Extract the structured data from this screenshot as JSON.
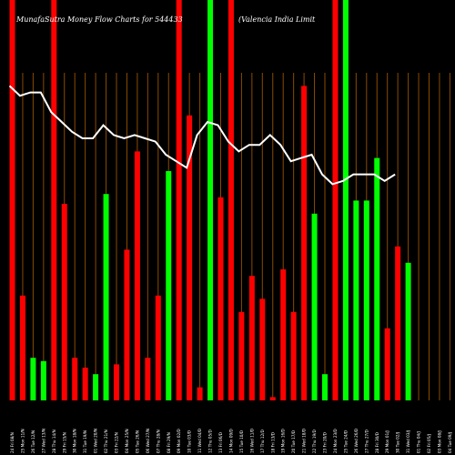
{
  "chart_data": {
    "type": "bar",
    "title_left": "MunafaSutra  Money Flow  Charts for 544433",
    "title_right": "(Valencia  India  Limit",
    "colors": {
      "up": "#00ff00",
      "down": "#ff0000",
      "line": "#ffffff",
      "grid": "#8b4a00",
      "background": "#000000"
    },
    "ylim": [
      0,
      100
    ],
    "categories": [
      "24 Fri 08/N",
      "25 Mon 11/N",
      "26 Tue 12/N",
      "27 Wed 13/N",
      "28 Thu 14/N",
      "29 Fri 15/N",
      "30 Mon 18/N",
      "31 Tue 19/N",
      "01 Wed 20/N",
      "02 Thu 21/N",
      "03 Fri 22/N",
      "04 Mon 25/N",
      "05 Tue 26/N",
      "06 Wed 27/N",
      "07 Thu 28/N",
      "08 Fri 29/N",
      "09 Mon 02/D",
      "10 Tue 03/D",
      "11 Wed 04/D",
      "12 Thu 05/D",
      "13 Fri 06/D",
      "14 Mon 09/D",
      "15 Tue 10/D",
      "16 Wed 11/D",
      "17 Thu 12/D",
      "18 Fri 13/D",
      "19 Mon 16/D",
      "20 Tue 17/D",
      "21 Wed 18/D",
      "22 Thu 19/D",
      "23 Fri 20/D",
      "24 Mon 23/D",
      "25 Tue 24/D",
      "26 Wed 26/D",
      "27 Thu 27/D",
      "28 Fri 30/D",
      "29 Mon 01/J",
      "30 Tue 02/J",
      "31 Wed 03/J",
      "01 Thu 04/J",
      "02 Fri 05/J",
      "03 Mon 08/J",
      "04 Tue 09/J",
      "05 Wed 10/J"
    ],
    "values": [
      100,
      32,
      13,
      12,
      100,
      60,
      13,
      10,
      8,
      63,
      11,
      46,
      76,
      13,
      32,
      70,
      100,
      87,
      4,
      100,
      62,
      100,
      27,
      38,
      31,
      1,
      40,
      27,
      96,
      57,
      8,
      100,
      100,
      61,
      61,
      74,
      22,
      47,
      42,
      0,
      0,
      0,
      0,
      0
    ],
    "directions": [
      "down",
      "down",
      "up",
      "up",
      "down",
      "down",
      "down",
      "down",
      "up",
      "up",
      "down",
      "down",
      "down",
      "down",
      "down",
      "up",
      "down",
      "down",
      "down",
      "up",
      "down",
      "down",
      "down",
      "down",
      "down",
      "down",
      "down",
      "down",
      "down",
      "up",
      "up",
      "down",
      "up",
      "up",
      "up",
      "up",
      "down",
      "down",
      "up",
      "up",
      "up",
      "up",
      "up",
      "up"
    ],
    "line": [
      96,
      93,
      94,
      94,
      88,
      85,
      82,
      80,
      80,
      84,
      81,
      80,
      81,
      80,
      79,
      75,
      73,
      71,
      81,
      85,
      84,
      79,
      76,
      78,
      78,
      81,
      78,
      73,
      74,
      75,
      69,
      66,
      67,
      69,
      69,
      69,
      67,
      69
    ]
  }
}
